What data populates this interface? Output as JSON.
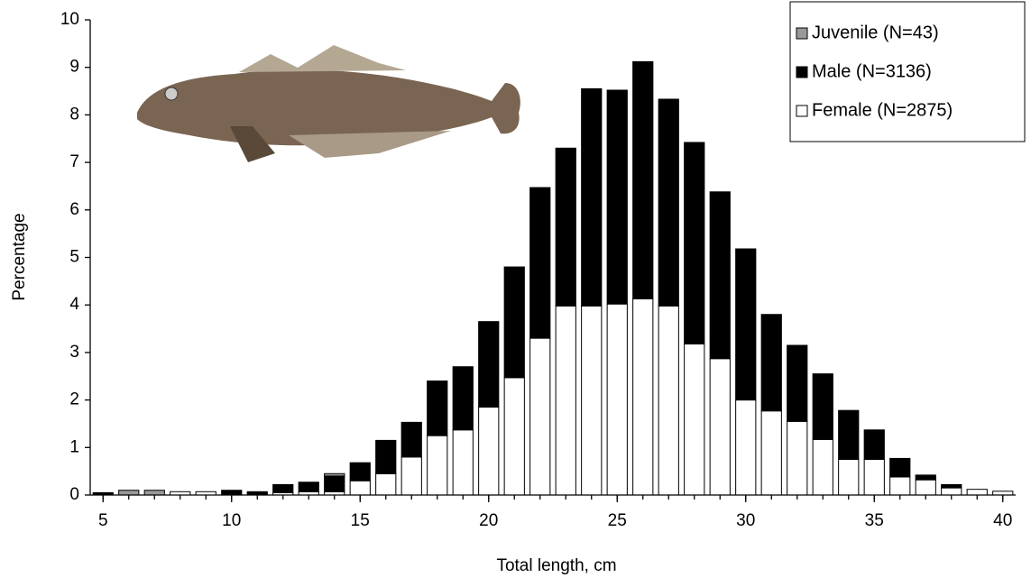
{
  "chart_data": {
    "type": "stacked_bar",
    "x_label": "Total length, cm",
    "y_label": "Percentage",
    "x": [
      5,
      6,
      7,
      8,
      9,
      10,
      11,
      12,
      13,
      14,
      15,
      16,
      17,
      18,
      19,
      20,
      21,
      22,
      23,
      24,
      25,
      26,
      27,
      28,
      29,
      30,
      31,
      32,
      33,
      34,
      35,
      36,
      37,
      38,
      39,
      40
    ],
    "series": [
      {
        "name": "Juvenile (N=43)",
        "color": "#999999",
        "values": [
          0,
          0.1,
          0.1,
          0,
          0,
          0,
          0,
          0,
          0,
          0.05,
          0,
          0,
          0,
          0,
          0,
          0,
          0,
          0,
          0,
          0,
          0,
          0,
          0,
          0,
          0,
          0,
          0,
          0,
          0,
          0,
          0,
          0,
          0,
          0,
          0,
          0
        ]
      },
      {
        "name": "Male (N=3136)",
        "color": "#000000",
        "values": [
          0.05,
          0,
          0,
          0,
          0,
          0.1,
          0.07,
          0.17,
          0.2,
          0.33,
          0.38,
          0.7,
          0.73,
          1.15,
          1.33,
          1.8,
          2.33,
          3.17,
          3.32,
          4.57,
          4.5,
          4.99,
          4.35,
          4.24,
          3.51,
          3.18,
          2.03,
          1.6,
          1.38,
          1.03,
          0.62,
          0.39,
          0.1,
          0.07,
          0,
          0
        ]
      },
      {
        "name": "Female (N=2875)",
        "color": "#ffffff",
        "values": [
          0,
          0,
          0,
          0.07,
          0.07,
          0,
          0,
          0.05,
          0.07,
          0.07,
          0.3,
          0.45,
          0.8,
          1.25,
          1.37,
          1.85,
          2.47,
          3.3,
          3.98,
          3.98,
          4.02,
          4.13,
          3.98,
          3.18,
          2.87,
          2.0,
          1.77,
          1.55,
          1.17,
          0.75,
          0.75,
          0.38,
          0.32,
          0.15,
          0.12,
          0.08
        ]
      }
    ],
    "xlim": [
      4.5,
      40.5
    ],
    "xticks": [
      5,
      10,
      15,
      20,
      25,
      30,
      35,
      40
    ],
    "ylim": [
      0,
      10
    ],
    "yticks": [
      0,
      1,
      2,
      3,
      4,
      5,
      6,
      7,
      8,
      9,
      10
    ],
    "legend": "upper right"
  }
}
